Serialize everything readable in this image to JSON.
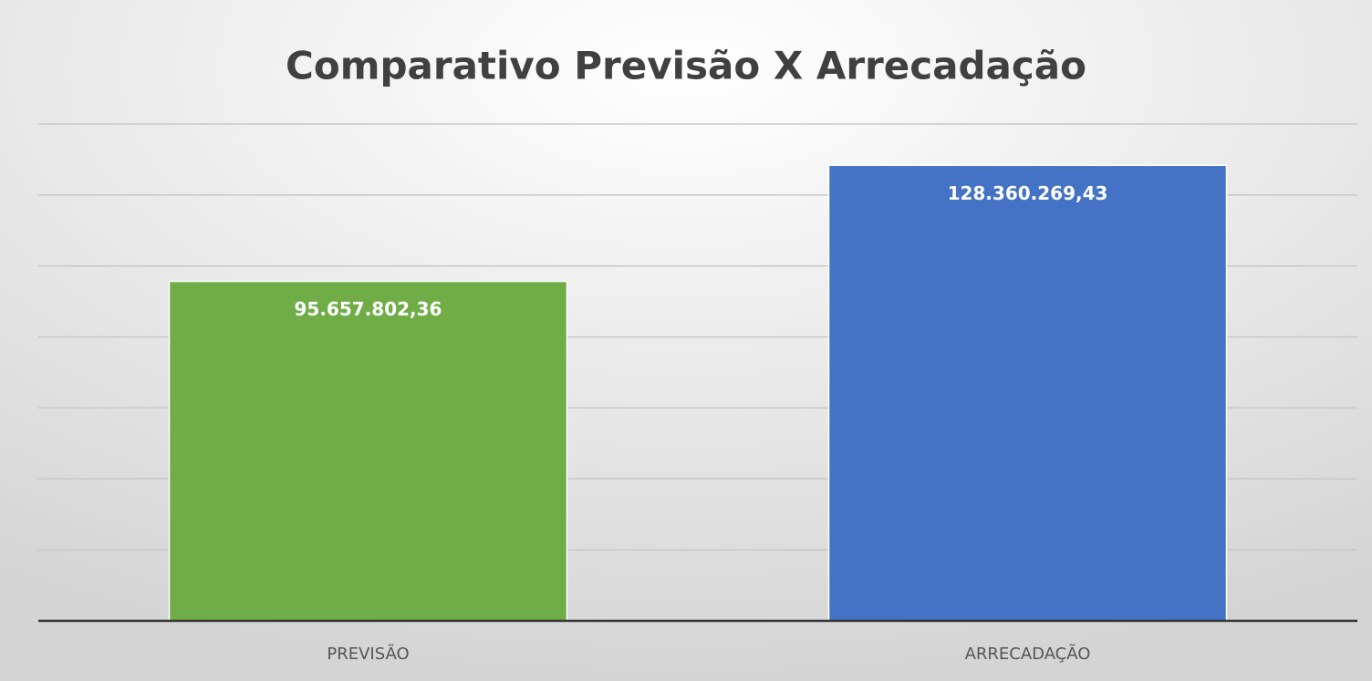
{
  "chart_data": {
    "type": "bar",
    "title": "Comparativo Previsão X Arrecadação",
    "categories": [
      "PREVISÃO",
      "ARRECADAÇÃO"
    ],
    "values": [
      95657802.36,
      128360269.43
    ],
    "value_labels": [
      "95.657.802,36",
      "128.360.269,43"
    ],
    "colors": [
      "#70ad47",
      "#4472c4"
    ],
    "ylim": [
      0,
      140000000
    ],
    "yticks": [
      0,
      20000000,
      40000000,
      60000000,
      80000000,
      100000000,
      120000000,
      140000000
    ],
    "grid": true
  }
}
